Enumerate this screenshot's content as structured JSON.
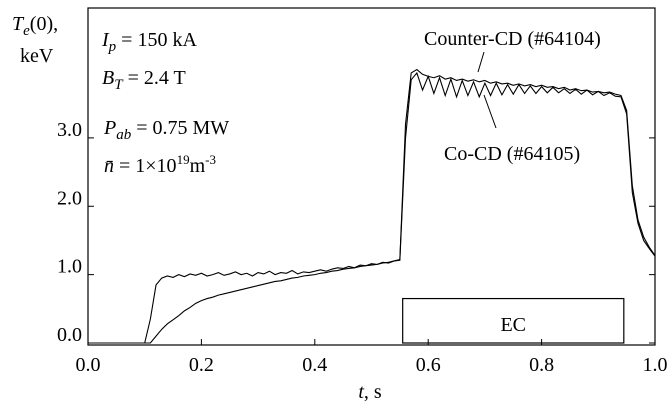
{
  "chart_data": {
    "type": "line",
    "ylabel": [
      [
        [
          "T",
          "i"
        ],
        [
          "e",
          "sub"
        ],
        [
          "(0),",
          ""
        ]
      ],
      [
        [
          "keV",
          ""
        ]
      ]
    ],
    "xlabel": [
      [
        "t",
        "i"
      ],
      [
        ", s",
        ""
      ]
    ],
    "annotations": [
      {
        "parts": [
          [
            "I",
            "i"
          ],
          [
            "p",
            "sub"
          ],
          [
            " = 150 kA",
            ""
          ]
        ]
      },
      {
        "parts": [
          [
            "B",
            "i"
          ],
          [
            "T",
            "sub"
          ],
          [
            " = 2.4 T",
            ""
          ]
        ]
      },
      {
        "parts": [
          [
            "P",
            "i"
          ],
          [
            "ab",
            "sub"
          ],
          [
            " = 0.75 MW",
            ""
          ]
        ]
      },
      {
        "parts": [
          [
            "n̄",
            "i"
          ],
          [
            "  = 1×10",
            ""
          ],
          [
            "19",
            "sup"
          ],
          [
            "m",
            ""
          ],
          [
            "-3",
            "sup"
          ]
        ]
      }
    ],
    "ec_box": {
      "label": "EC",
      "xrange": [
        0.555,
        0.945
      ],
      "yrange": [
        0,
        0.65
      ]
    },
    "xlim": [
      0,
      1
    ],
    "ylim": [
      0,
      4.9
    ],
    "xticks": [
      {
        "value": 0,
        "label": "0.0"
      },
      {
        "value": 0.2,
        "label": "0.2"
      },
      {
        "value": 0.4,
        "label": "0.4"
      },
      {
        "value": 0.6,
        "label": "0.6"
      },
      {
        "value": 0.8,
        "label": "0.8"
      },
      {
        "value": 1,
        "label": "1.0"
      }
    ],
    "yticks": [
      {
        "value": 0,
        "label": "0.0"
      },
      {
        "value": 1,
        "label": "1.0"
      },
      {
        "value": 2,
        "label": "2.0"
      },
      {
        "value": 3,
        "label": "3.0"
      }
    ],
    "x": [
      0,
      0.01,
      0.02,
      0.03,
      0.04,
      0.05,
      0.06,
      0.07,
      0.08,
      0.09,
      0.1,
      0.11,
      0.12,
      0.13,
      0.14,
      0.15,
      0.16,
      0.17,
      0.18,
      0.19,
      0.2,
      0.21,
      0.22,
      0.23,
      0.24,
      0.25,
      0.26,
      0.27,
      0.28,
      0.29,
      0.3,
      0.31,
      0.32,
      0.33,
      0.34,
      0.35,
      0.36,
      0.37,
      0.38,
      0.39,
      0.4,
      0.41,
      0.42,
      0.43,
      0.44,
      0.45,
      0.46,
      0.47,
      0.48,
      0.49,
      0.5,
      0.51,
      0.52,
      0.53,
      0.54,
      0.55,
      0.56,
      0.57,
      0.58,
      0.59,
      0.6,
      0.61,
      0.62,
      0.63,
      0.64,
      0.65,
      0.66,
      0.67,
      0.68,
      0.69,
      0.7,
      0.71,
      0.72,
      0.73,
      0.74,
      0.75,
      0.76,
      0.77,
      0.78,
      0.79,
      0.8,
      0.81,
      0.82,
      0.83,
      0.84,
      0.85,
      0.86,
      0.87,
      0.88,
      0.89,
      0.9,
      0.91,
      0.92,
      0.93,
      0.94,
      0.95,
      0.96,
      0.97,
      0.98,
      0.99,
      1
    ],
    "series": [
      {
        "name": "Counter-CD (#64104)",
        "color": "#000000",
        "values": [
          0,
          0,
          0,
          0,
          0,
          0,
          0,
          0,
          0,
          0,
          0,
          0.35,
          0.85,
          0.95,
          0.98,
          0.96,
          1.0,
          0.97,
          1.01,
          0.99,
          1.02,
          0.98,
          1.0,
          1.03,
          0.99,
          1.01,
          1.04,
          1.0,
          1.02,
          0.98,
          1.03,
          1.01,
          1.05,
          1.0,
          1.03,
          1.02,
          1.06,
          1.01,
          1.04,
          1.03,
          1.05,
          1.07,
          1.05,
          1.08,
          1.1,
          1.09,
          1.12,
          1.1,
          1.14,
          1.13,
          1.16,
          1.15,
          1.18,
          1.17,
          1.2,
          1.22,
          3.2,
          3.95,
          4.0,
          3.93,
          3.9,
          3.88,
          3.91,
          3.86,
          3.88,
          3.84,
          3.86,
          3.83,
          3.85,
          3.82,
          3.84,
          3.8,
          3.82,
          3.79,
          3.8,
          3.77,
          3.79,
          3.76,
          3.78,
          3.75,
          3.77,
          3.74,
          3.75,
          3.72,
          3.74,
          3.7,
          3.72,
          3.69,
          3.7,
          3.67,
          3.68,
          3.66,
          3.67,
          3.64,
          3.62,
          3.4,
          2.3,
          1.8,
          1.55,
          1.4,
          1.28
        ]
      },
      {
        "name": "Co-CD (#64105)",
        "color": "#000000",
        "values": [
          0,
          0,
          0,
          0,
          0,
          0,
          0,
          0,
          0,
          0,
          0,
          0,
          0.1,
          0.2,
          0.28,
          0.34,
          0.4,
          0.47,
          0.52,
          0.58,
          0.62,
          0.65,
          0.67,
          0.7,
          0.72,
          0.74,
          0.76,
          0.78,
          0.8,
          0.82,
          0.84,
          0.86,
          0.88,
          0.9,
          0.91,
          0.93,
          0.95,
          0.96,
          0.98,
          0.99,
          1.0,
          1.02,
          1.03,
          1.05,
          1.06,
          1.08,
          1.09,
          1.1,
          1.12,
          1.13,
          1.14,
          1.15,
          1.17,
          1.18,
          1.2,
          1.21,
          3.0,
          3.85,
          3.95,
          3.7,
          3.9,
          3.65,
          3.88,
          3.62,
          3.86,
          3.6,
          3.84,
          3.62,
          3.82,
          3.6,
          3.8,
          3.62,
          3.8,
          3.63,
          3.78,
          3.64,
          3.78,
          3.65,
          3.76,
          3.65,
          3.75,
          3.66,
          3.74,
          3.66,
          3.72,
          3.65,
          3.71,
          3.64,
          3.7,
          3.63,
          3.68,
          3.62,
          3.66,
          3.61,
          3.6,
          3.35,
          2.2,
          1.75,
          1.5,
          1.38,
          1.27
        ]
      }
    ]
  }
}
